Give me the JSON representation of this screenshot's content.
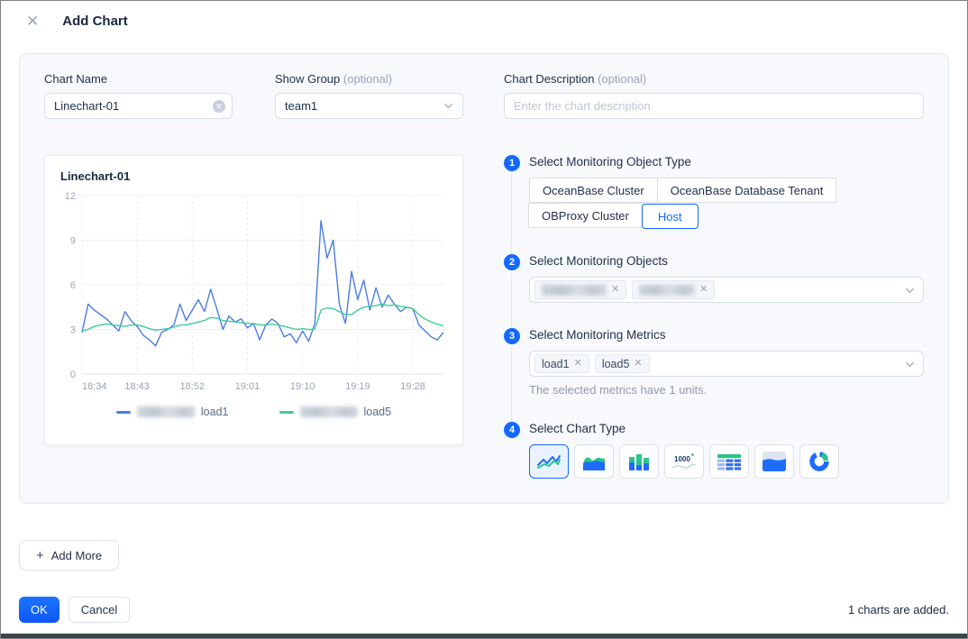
{
  "window": {
    "title": "Add Chart",
    "close_icon": "close-x"
  },
  "form": {
    "chart_name": {
      "label": "Chart Name",
      "value": "Linechart-01"
    },
    "show_group": {
      "label": "Show Group",
      "optional": "(optional)",
      "value": "team1"
    },
    "chart_description": {
      "label": "Chart Description",
      "optional": "(optional)",
      "placeholder": "Enter the chart description"
    }
  },
  "preview": {
    "title": "Linechart-01",
    "legend": [
      {
        "name": "load1",
        "color": "#4a7de5",
        "host_blurred": true
      },
      {
        "name": "load5",
        "color": "#41cb95",
        "host_blurred": true
      }
    ]
  },
  "chart_data": {
    "type": "line",
    "title": "Linechart-01",
    "ylim": [
      0,
      12
    ],
    "y_ticks": [
      0,
      3,
      6,
      9,
      12
    ],
    "x_ticks": [
      "18:34",
      "18:43",
      "18:52",
      "19:01",
      "19:10",
      "19:19",
      "19:28"
    ],
    "x_tick_indices": [
      0,
      9,
      18,
      27,
      36,
      45,
      54
    ],
    "n_points": 60,
    "grid": "horizontal solid, vertical dashed",
    "legend_position": "bottom",
    "series": [
      {
        "name": "load1",
        "color": "#4a7de5",
        "values": [
          2.8,
          4.7,
          4.3,
          4.0,
          3.7,
          3.3,
          2.9,
          4.2,
          3.6,
          3.2,
          2.6,
          2.3,
          1.9,
          2.8,
          3.0,
          3.3,
          4.7,
          3.6,
          4.3,
          5.0,
          4.2,
          5.7,
          4.4,
          3.0,
          3.9,
          3.5,
          3.7,
          3.1,
          3.4,
          2.3,
          3.3,
          3.7,
          3.4,
          2.5,
          2.7,
          2.1,
          2.9,
          2.2,
          3.4,
          10.3,
          7.8,
          9.0,
          4.7,
          3.4,
          6.9,
          5.0,
          6.3,
          4.3,
          5.8,
          4.5,
          5.3,
          4.7,
          4.2,
          4.5,
          4.4,
          3.3,
          2.9,
          2.5,
          2.3,
          2.8
        ]
      },
      {
        "name": "load5",
        "color": "#41cb95",
        "values": [
          2.9,
          3.0,
          3.2,
          3.3,
          3.35,
          3.3,
          3.25,
          3.2,
          3.3,
          3.3,
          3.2,
          3.05,
          2.95,
          3.0,
          3.05,
          3.15,
          3.3,
          3.3,
          3.4,
          3.5,
          3.6,
          3.8,
          3.75,
          3.6,
          3.55,
          3.5,
          3.45,
          3.4,
          3.4,
          3.3,
          3.3,
          3.35,
          3.3,
          3.2,
          3.1,
          3.0,
          3.05,
          3.0,
          3.0,
          4.3,
          4.45,
          4.4,
          4.2,
          4.0,
          4.0,
          4.3,
          4.5,
          4.55,
          4.6,
          4.7,
          4.6,
          4.65,
          4.55,
          4.5,
          4.4,
          4.0,
          3.7,
          3.5,
          3.35,
          3.25
        ]
      }
    ]
  },
  "steps": [
    {
      "number": "1",
      "label": "Select Monitoring Object Type",
      "options": [
        "OceanBase Cluster",
        "OceanBase Database Tenant",
        "OBProxy Cluster",
        "Host"
      ],
      "selected": "Host"
    },
    {
      "number": "2",
      "label": "Select Monitoring Objects",
      "tags": [
        {
          "label": "",
          "blurred": true,
          "removable": true
        },
        {
          "label": "",
          "blurred": true,
          "removable": true
        }
      ]
    },
    {
      "number": "3",
      "label": "Select Monitoring Metrics",
      "tags": [
        "load1",
        "load5"
      ],
      "hint": "The selected metrics have 1 units."
    },
    {
      "number": "4",
      "label": "Select Chart Type",
      "types": [
        {
          "icon": "line-chart-icon",
          "selected": true
        },
        {
          "icon": "area-chart-icon",
          "selected": false
        },
        {
          "icon": "bar-chart-icon",
          "selected": false
        },
        {
          "icon": "value-card-icon",
          "selected": false,
          "text": "1000"
        },
        {
          "icon": "table-icon",
          "selected": false
        },
        {
          "icon": "water-level-icon",
          "selected": false
        },
        {
          "icon": "ring-chart-icon",
          "selected": false
        }
      ]
    }
  ],
  "footer": {
    "add_more": "Add More",
    "ok": "OK",
    "cancel": "Cancel",
    "status": "1 charts are added."
  },
  "colors": {
    "primary": "#1568fe",
    "panel_bg": "#f7f9fc",
    "line_blue": "#4a7de5",
    "line_green": "#41cb95",
    "icon_blue": "#1d6bff",
    "icon_green": "#2bc48a"
  }
}
